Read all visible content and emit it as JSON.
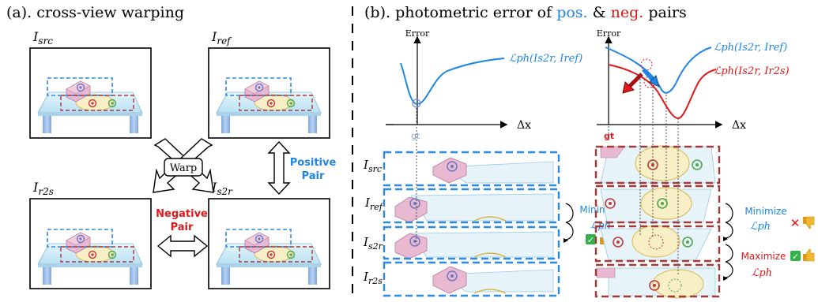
{
  "panel_a": {
    "title": "(a). cross-view warping",
    "labels": {
      "src": "I",
      "src_sub": "src",
      "ref": "I",
      "ref_sub": "ref",
      "r2s": "I",
      "r2s_sub": "r2s",
      "s2r": "I",
      "s2r_sub": "s2r"
    },
    "warp_label": "Warp",
    "positive_pair": [
      "Positive",
      "Pair"
    ],
    "negative_pair": [
      "Negative",
      "Pair"
    ]
  },
  "panel_b": {
    "title_prefix": "(b). photometric error of ",
    "title_pos": "pos.",
    "title_amp": " & ",
    "title_neg": "neg.",
    "title_suffix": " pairs",
    "y_axis": "Error",
    "x_axis": "Δx",
    "gt_label": "gt",
    "curve_left": "ℒph(Is2r, Iref)",
    "curve_right_blue": "ℒph(Is2r, Iref)",
    "curve_right_red": "ℒph(Is2r, Ir2s)",
    "row_labels": [
      {
        "main": "I",
        "sub": "src"
      },
      {
        "main": "I",
        "sub": "ref"
      },
      {
        "main": "I",
        "sub": "s2r"
      },
      {
        "main": "I",
        "sub": "r2s"
      }
    ],
    "minimize": "Minimize",
    "maximize": "Maximize",
    "lph": "ℒph",
    "check": "✓",
    "cross": "✕",
    "thumb_up": "👍",
    "thumb_down": "👎"
  },
  "colors": {
    "blue": "#1f86e6",
    "red": "#e0181b",
    "dashed_blue": "#2b8be3",
    "dashed_red": "#a33a3a",
    "table_top": "#d7eef8",
    "table_leg": "#9cc1e8",
    "ellipse": "#f8efc6",
    "box": "#e9b9d2",
    "green_check": "#33b24a",
    "thumb_yellow": "#f2b630"
  }
}
